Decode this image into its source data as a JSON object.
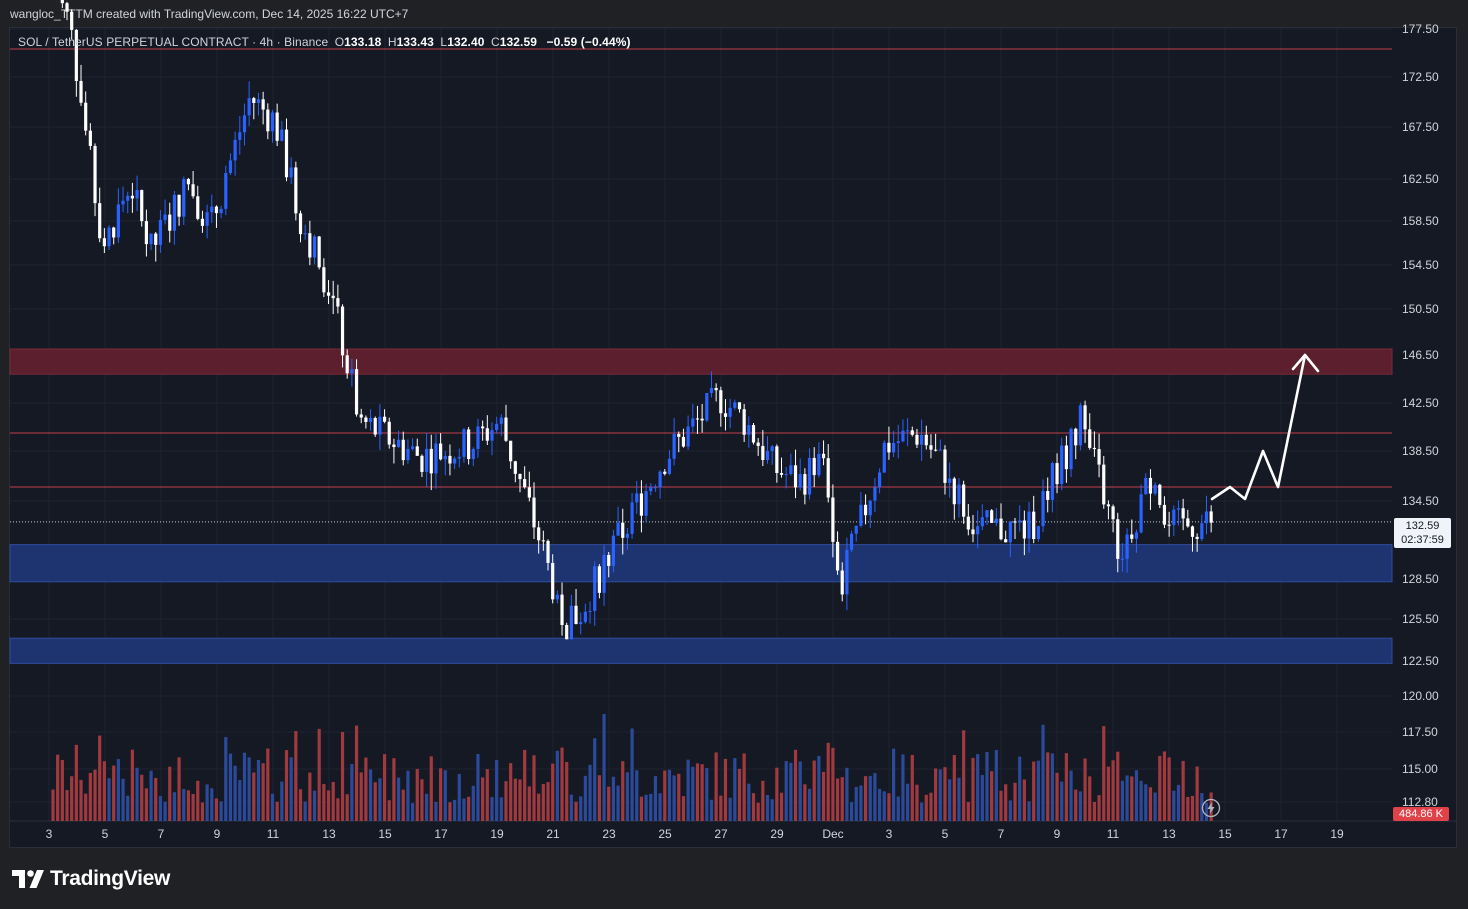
{
  "header": {
    "attribution": "wangloc_TTTM created with TradingView.com, Dec 14, 2025 16:22 UTC+7"
  },
  "legend": {
    "symbol": "SOL / TetherUS PERPETUAL CONTRACT · 4h · Binance",
    "open_label": "O",
    "open": "133.18",
    "high_label": "H",
    "high": "133.43",
    "low_label": "L",
    "low": "132.40",
    "close_label": "C",
    "close": "132.59",
    "change": "−0.59 (−0.44%)"
  },
  "price_tag": {
    "price": "132.59",
    "countdown": "02:37:59"
  },
  "volume_tag": {
    "value": "484.86 K"
  },
  "footer": {
    "brand": "TradingView"
  },
  "colors": {
    "background": "#151924",
    "up": "#2962ff",
    "down": "#ffffff",
    "resistance_zone": "#5b1f2e",
    "support_zone": "#1e3470",
    "resistance_line": "#c2404a",
    "volume_up": "#2b4a9a",
    "volume_down": "#a03a3e"
  },
  "chart_data": {
    "type": "candlestick",
    "symbol": "SOL / TetherUS PERPETUAL CONTRACT",
    "interval": "4h",
    "exchange": "Binance",
    "y_range": [
      111,
      178
    ],
    "y_ticks": [
      "177.50",
      "172.50",
      "167.50",
      "162.50",
      "158.50",
      "154.50",
      "150.50",
      "146.50",
      "142.50",
      "138.50",
      "134.50",
      "132.59",
      "128.50",
      "125.50",
      "122.50",
      "120.00",
      "117.50",
      "115.00",
      "112.80"
    ],
    "x_ticks": [
      "3",
      "5",
      "7",
      "9",
      "11",
      "13",
      "15",
      "17",
      "19",
      "21",
      "23",
      "25",
      "27",
      "29",
      "Dec",
      "3",
      "5",
      "7",
      "9",
      "11",
      "13",
      "15",
      "17",
      "19"
    ],
    "last_price": 132.59,
    "resistance_lines": [
      172.0,
      140.0,
      135.5
    ],
    "resistance_zone": [
      144.9,
      147.0
    ],
    "support_zones": [
      [
        127.6,
        130.7
      ],
      [
        120.8,
        122.9
      ]
    ],
    "price_path": [
      [
        "3",
        177
      ],
      [
        "3",
        174
      ],
      [
        "5",
        158
      ],
      [
        "5",
        156
      ],
      [
        "7",
        161
      ],
      [
        "7",
        155
      ],
      [
        "9",
        161
      ],
      [
        "9",
        157
      ],
      [
        "11",
        168
      ],
      [
        "11",
        166
      ],
      [
        "13",
        158
      ],
      [
        "13",
        152
      ],
      [
        "15",
        141
      ],
      [
        "17",
        138
      ],
      [
        "19",
        139
      ],
      [
        "19",
        141
      ],
      [
        "21",
        131
      ],
      [
        "21",
        124
      ],
      [
        "23",
        125
      ],
      [
        "23",
        130
      ],
      [
        "25",
        138
      ],
      [
        "27",
        143
      ],
      [
        "27",
        141
      ],
      [
        "29",
        137
      ],
      [
        "29",
        136
      ],
      [
        "Dec",
        138
      ],
      [
        "Dec",
        127
      ],
      [
        "3",
        139
      ],
      [
        "5",
        140
      ],
      [
        "5",
        137
      ],
      [
        "7",
        132
      ],
      [
        "9",
        132
      ],
      [
        "9",
        141
      ],
      [
        "11",
        136
      ],
      [
        "11",
        130
      ],
      [
        "13",
        137
      ],
      [
        "13",
        132
      ],
      [
        "13",
        132.59
      ]
    ],
    "projection_arrow": [
      134.5,
      135.5,
      134.5,
      138.5,
      135.5,
      146.5
    ],
    "volume_last": "484.86 K"
  }
}
